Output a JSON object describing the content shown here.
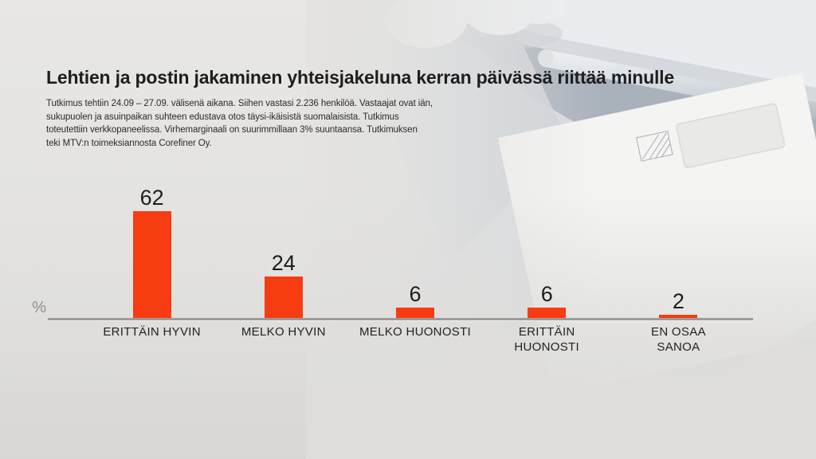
{
  "header": {
    "title": "Lehtien ja postin jakaminen yhteisjakeluna kerran päivässä riittää minulle",
    "subtitle_lines": [
      "Tutkimus tehtiin 24.09 – 27.09. välisenä aikana. Siihen vastasi 2.236 henkilöä. Vastaajat ovat iän,",
      "sukupuolen ja asuinpaikan suhteen edustava otos täysi-ikäisistä suomalaisista. Tutkimus",
      "toteutettiin verkkopaneelissa. Virhemarginaali on suurimmillaan 3% suuntaansa. Tutkimuksen",
      "teki MTV:n toimeksiannosta Corefiner Oy."
    ]
  },
  "chart_data": {
    "type": "bar",
    "title": "Lehtien ja postin jakaminen yhteisjakeluna kerran päivässä riittää minulle",
    "categories": [
      "ERITTÄIN HYVIN",
      "MELKO HYVIN",
      "MELKO HUONOSTI",
      "ERITTÄIN HUONOSTI",
      "EN OSAA SANOA"
    ],
    "category_display": [
      "ERITTÄIN HYVIN",
      "MELKO HYVIN",
      "MELKO HUONOSTI",
      "ERITTÄIN\nHUONOSTI",
      "EN OSAA\nSANOA"
    ],
    "values": [
      62,
      24,
      6,
      6,
      2
    ],
    "unit": "%",
    "ylabel": "%",
    "ylim": [
      0,
      70
    ],
    "grid": false,
    "legend": "none",
    "data_labels": true,
    "bar_color": "#f63c10",
    "value_label_color": "#1c1c1c",
    "axis_color": "#9c9c9c"
  },
  "background": {
    "photo_alt": "grayscale photo of a white envelope being pushed into a mail slot by a gloved hand",
    "base_color": "#e4e3e1"
  }
}
